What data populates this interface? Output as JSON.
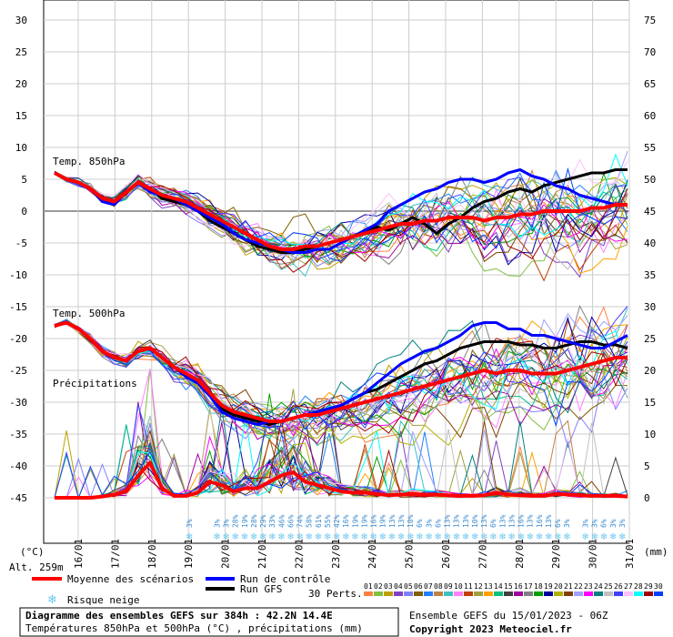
{
  "chart_data": {
    "type": "line",
    "title": "Diagramme des ensembles GEFS sur 384h : 42.2N 14.4E",
    "subtitle": "Températures 850hPa et 500hPa (°C) , précipitations (mm)",
    "run_info": "Ensemble GEFS du 15/01/2023 - 06Z",
    "copyright": "Copyright 2023 Meteociel.fr",
    "left_unit": "(°C)",
    "right_unit": "(mm)",
    "altitude": "Alt. 259m",
    "y_left_ticks": [
      30,
      25,
      20,
      15,
      10,
      5,
      0,
      -5,
      -10,
      -15,
      -20,
      -25,
      -30,
      -35,
      -40,
      -45
    ],
    "y_right_ticks": [
      75,
      70,
      65,
      60,
      55,
      50,
      45,
      40,
      35,
      30,
      25,
      20,
      15,
      10,
      5,
      0
    ],
    "ylim": [
      -45,
      30
    ],
    "y2lim": [
      0,
      75
    ],
    "x_days": [
      "16/01",
      "17/01",
      "18/01",
      "19/01",
      "20/01",
      "21/01",
      "22/01",
      "23/01",
      "24/01",
      "25/01",
      "26/01",
      "27/01",
      "28/01",
      "29/01",
      "30/01",
      "31/01"
    ],
    "x_step_hours": 6,
    "panel_labels": {
      "t850": "Temp. 850hPa",
      "t500": "Temp. 500hPa",
      "precip": "Précipitations"
    },
    "snow_risk_pct": [
      "3%",
      "",
      "",
      "3%",
      "3%",
      "28%",
      "19%",
      "28%",
      "29%",
      "33%",
      "46%",
      "66%",
      "74%",
      "58%",
      "61%",
      "55%",
      "42%",
      "16%",
      "19%",
      "19%",
      "16%",
      "19%",
      "13%",
      "13%",
      "10%",
      "6%",
      "3%",
      "6%",
      "13%",
      "13%",
      "13%",
      "10%",
      "13%",
      "6%",
      "13%",
      "13%",
      "16%",
      "13%",
      "16%",
      "13%",
      "6%",
      "3%",
      "",
      "3%",
      "3%",
      "6%",
      "3%",
      "3%"
    ],
    "legend": {
      "mean": "Moyenne des scénarios",
      "control": "Run de contrôle",
      "gfs": "Run GFS",
      "snow": "Risque neige",
      "perts": "30 Perts."
    },
    "pert_labels": [
      "01",
      "02",
      "03",
      "04",
      "05",
      "06",
      "07",
      "08",
      "09",
      "10",
      "11",
      "12",
      "13",
      "14",
      "15",
      "16",
      "17",
      "18",
      "19",
      "20",
      "21",
      "22",
      "23",
      "24",
      "25",
      "26",
      "27",
      "28",
      "29",
      "30"
    ],
    "pert_colors": [
      "#ff8040",
      "#80c040",
      "#c0a000",
      "#8040c0",
      "#8080ff",
      "#806000",
      "#2080ff",
      "#c08040",
      "#40c0c0",
      "#ff80ff",
      "#c04000",
      "#a0a040",
      "#ffa000",
      "#00c080",
      "#404040",
      "#a000a0",
      "#808080",
      "#00a000",
      "#0000a0",
      "#b0b000",
      "#804000",
      "#a0a0ff",
      "#ff00ff",
      "#008080",
      "#c0c0c0",
      "#4040ff",
      "#ffc0ff",
      "#00ffff",
      "#a00000",
      "#0040ff"
    ],
    "colors": {
      "mean": "#ff0000",
      "control": "#0000ff",
      "gfs": "#000000",
      "snow": "#6ec8f0"
    },
    "series_mean_t850": [
      6.0,
      5.0,
      4.5,
      3.5,
      2.0,
      1.5,
      3.0,
      4.5,
      3.5,
      2.5,
      2.0,
      1.5,
      0.5,
      -0.5,
      -1.5,
      -2.5,
      -3.5,
      -4.5,
      -5.5,
      -6.0,
      -6.0,
      -5.5,
      -5.5,
      -5.0,
      -4.5,
      -4.0,
      -3.5,
      -3.0,
      -2.5,
      -2.0,
      -2.0,
      -1.5,
      -1.5,
      -1.0,
      -1.0,
      -1.0,
      -1.5,
      -1.0,
      -1.0,
      -0.5,
      -0.5,
      0,
      0,
      0,
      0,
      0.5,
      0.5,
      1.0,
      1.0
    ],
    "series_control_t850": [
      6.0,
      5.0,
      4.5,
      3.5,
      1.5,
      1.0,
      3.0,
      4.5,
      3.0,
      2.5,
      2.0,
      1.0,
      0,
      -1.0,
      -2.0,
      -3.5,
      -4.5,
      -5.0,
      -5.5,
      -6.0,
      -6.5,
      -6.5,
      -6.0,
      -6.0,
      -5.0,
      -4.0,
      -3.0,
      -2.0,
      0,
      1.0,
      2.0,
      3.0,
      3.5,
      4.5,
      5.0,
      5.0,
      4.5,
      5.0,
      6.0,
      6.5,
      5.5,
      5.0,
      4.0,
      3.5,
      2.5,
      2.0,
      1.5,
      1.0,
      1.0
    ],
    "series_gfs_t850": [
      6.0,
      5.0,
      4.5,
      3.5,
      1.5,
      1.5,
      3.0,
      4.5,
      3.5,
      2.0,
      1.5,
      1.0,
      0,
      -1.5,
      -2.5,
      -3.5,
      -4.5,
      -5.5,
      -6.0,
      -6.5,
      -6.5,
      -6.0,
      -5.5,
      -5.0,
      -4.5,
      -4.0,
      -3.0,
      -2.5,
      -3.0,
      -2.0,
      -1.0,
      -2.0,
      -3.5,
      -2.0,
      -1.0,
      0.5,
      1.5,
      2.0,
      3.0,
      3.5,
      3.0,
      4.0,
      4.5,
      5.0,
      5.5,
      6.0,
      6.0,
      6.5,
      6.5
    ],
    "series_mean_t500": [
      -18,
      -17.5,
      -18.5,
      -20,
      -22,
      -23,
      -23.5,
      -22,
      -21.5,
      -23,
      -24.5,
      -25.5,
      -26.5,
      -28.5,
      -30.5,
      -31.5,
      -32,
      -32.5,
      -33,
      -33,
      -32.5,
      -32,
      -32,
      -31.5,
      -31,
      -30.5,
      -30,
      -29.5,
      -29,
      -28.5,
      -28,
      -27.5,
      -27,
      -26.5,
      -26,
      -25.5,
      -25,
      -25.5,
      -25,
      -25,
      -25.5,
      -25.5,
      -25.5,
      -25,
      -24.5,
      -24,
      -23.5,
      -23,
      -23
    ],
    "series_control_t500": [
      -18,
      -17.5,
      -18.5,
      -20,
      -22,
      -23,
      -23.5,
      -22,
      -21.5,
      -23,
      -24.5,
      -26,
      -27,
      -29,
      -31.5,
      -32.5,
      -33,
      -33.5,
      -33,
      -33,
      -32.5,
      -32,
      -31.5,
      -31,
      -30.5,
      -29.5,
      -28.5,
      -27,
      -25.5,
      -24,
      -23,
      -22,
      -21.5,
      -20.5,
      -19.5,
      -18,
      -17.5,
      -17.5,
      -18.5,
      -18.5,
      -19.5,
      -19.5,
      -20,
      -20.5,
      -21,
      -21.5,
      -21.5,
      -20.5,
      -19.5
    ],
    "series_gfs_t500": [
      -18,
      -17.5,
      -18.5,
      -20,
      -22,
      -23,
      -23.5,
      -22,
      -21.5,
      -23,
      -24.5,
      -25.5,
      -27,
      -29,
      -31,
      -32,
      -32.5,
      -33,
      -33.5,
      -33,
      -32.5,
      -32,
      -31.5,
      -31,
      -30.5,
      -29.5,
      -28.5,
      -28,
      -27,
      -26,
      -25,
      -24,
      -23.5,
      -22.5,
      -21.5,
      -21,
      -20.5,
      -20.5,
      -20.5,
      -21,
      -21,
      -21.5,
      -21.5,
      -21,
      -20.5,
      -20.5,
      -21,
      -21,
      -21.5
    ],
    "series_mean_precip": [
      0,
      0,
      0,
      0,
      0.2,
      0.5,
      1.0,
      3.5,
      5.5,
      1.5,
      0.3,
      0.3,
      0.8,
      2.5,
      2.0,
      1.0,
      1.5,
      1.5,
      2.5,
      3.5,
      4.0,
      2.5,
      2.0,
      1.5,
      1.0,
      0.8,
      0.8,
      0.6,
      0.4,
      0.5,
      0.6,
      0.5,
      0.5,
      0.4,
      0.3,
      0.3,
      0.4,
      0.8,
      0.5,
      0.4,
      0.3,
      0.3,
      0.6,
      0.5,
      0.4,
      0.3,
      0.3,
      0.3,
      0.2
    ]
  }
}
